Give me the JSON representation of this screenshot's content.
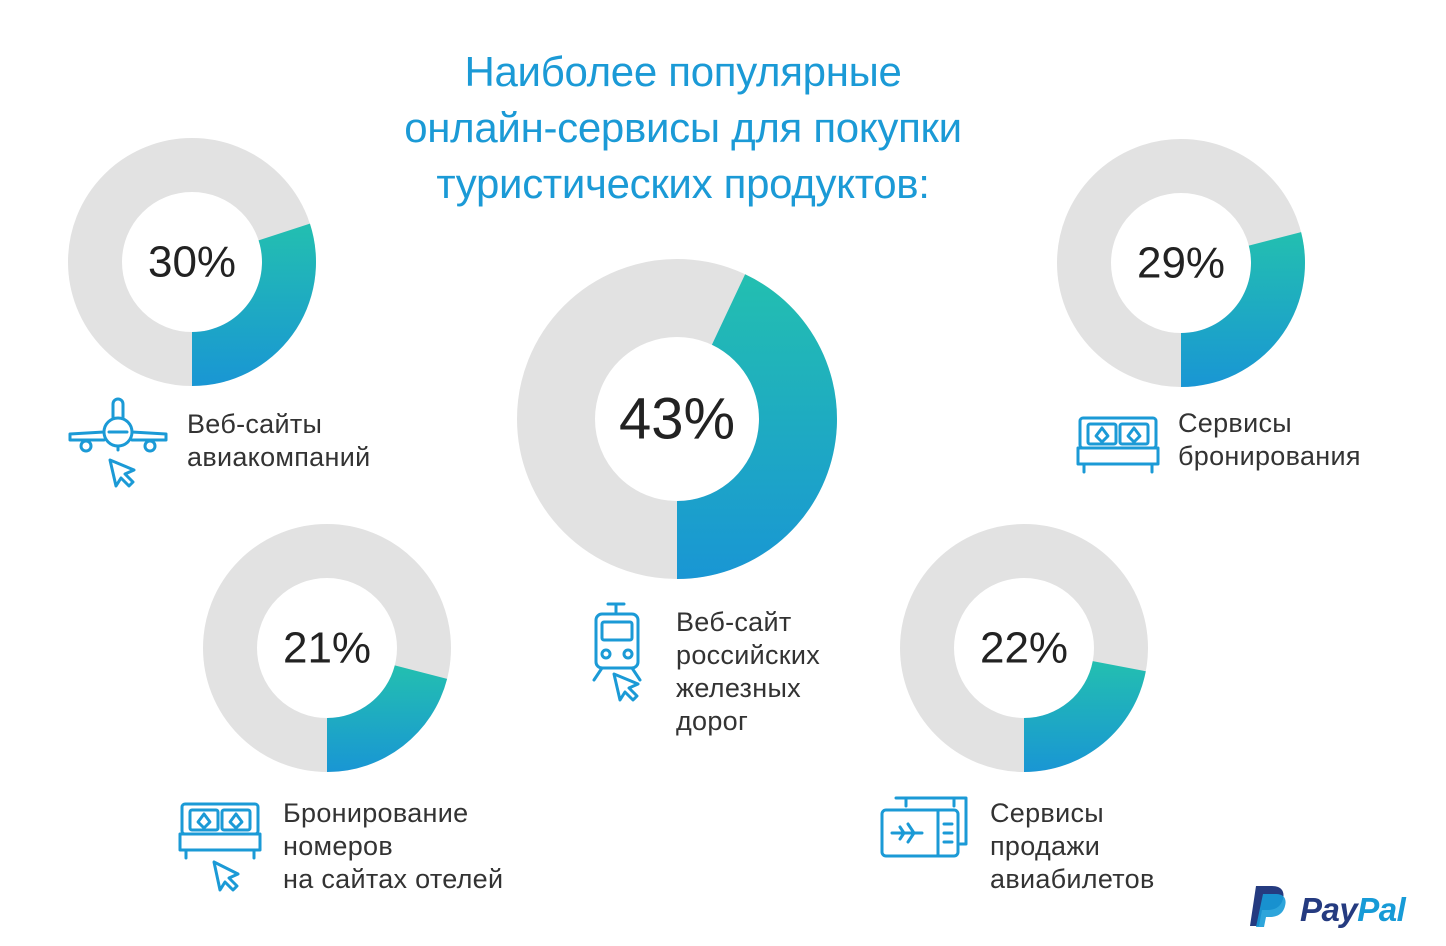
{
  "title_lines": [
    "Наиболее популярные",
    "онлайн-сервисы для покупки",
    "туристических продуктов:"
  ],
  "colors": {
    "title": "#1b9ad6",
    "ring_gray": "#e2e2e2",
    "ring_gradient_start": "#23bfb0",
    "ring_gradient_end": "#1996d4",
    "icon": "#1b9ad6",
    "paypal_dark": "#253b80",
    "paypal_light": "#179bd7"
  },
  "brand": {
    "part1": "Pay",
    "part2": "Pal"
  },
  "chart_data": {
    "type": "pie",
    "title": "Наиболее популярные онлайн-сервисы для покупки туристических продуктов:",
    "unit": "%",
    "items": [
      {
        "label_lines": [
          "Веб-сайты",
          "авиакомпаний"
        ],
        "value": 30,
        "display": "30%",
        "icon": "airplane-icon"
      },
      {
        "label_lines": [
          "Веб-сайт",
          "российских",
          "железных",
          "дорог"
        ],
        "value": 43,
        "display": "43%",
        "icon": "train-icon"
      },
      {
        "label_lines": [
          "Сервисы",
          "бронирования"
        ],
        "value": 29,
        "display": "29%",
        "icon": "bed-icon"
      },
      {
        "label_lines": [
          "Бронирование",
          "номеров",
          "на сайтах отелей"
        ],
        "value": 21,
        "display": "21%",
        "icon": "bed-icon"
      },
      {
        "label_lines": [
          "Сервисы",
          "продажи",
          "авиабилетов"
        ],
        "value": 22,
        "display": "22%",
        "icon": "ticket-icon"
      }
    ]
  }
}
